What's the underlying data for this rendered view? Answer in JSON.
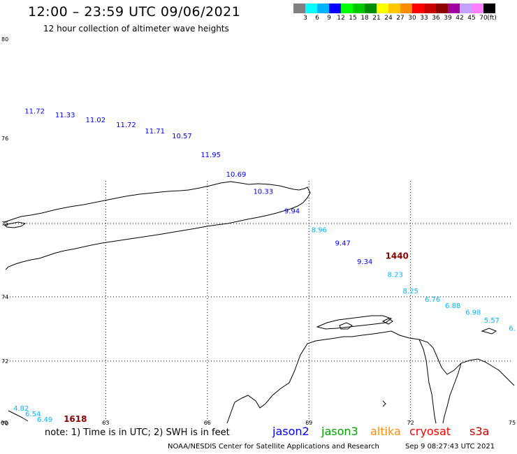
{
  "header": {
    "title": "12:00 – 23:59 UTC 09/06/2021",
    "subtitle": "12 hour collection of altimeter wave heights"
  },
  "color_scale": {
    "labels": [
      "3",
      "6",
      "9",
      "12",
      "15",
      "18",
      "21",
      "24",
      "27",
      "30",
      "33",
      "36",
      "39",
      "42",
      "45",
      "70"
    ],
    "unit": "(ft)",
    "colors": [
      "#808080",
      "#00ffff",
      "#00b4ff",
      "#0000ff",
      "#00ff00",
      "#00c800",
      "#008c00",
      "#ffff00",
      "#ffc800",
      "#ff8c00",
      "#ff0000",
      "#c80000",
      "#8c0000",
      "#a000a0",
      "#c8a0ff",
      "#ff80ff",
      "#000000"
    ]
  },
  "map": {
    "lat_labels": [
      "80",
      "76",
      "75",
      "74",
      "72",
      "70"
    ],
    "lon_labels": [
      "60",
      "63",
      "66",
      "69",
      "72",
      "75"
    ],
    "coast_color": "#000000",
    "grid_color": "#000000"
  },
  "observations": [
    {
      "value": "11.72",
      "lon": 60.9,
      "lat": 77.0,
      "color": "#0000ff"
    },
    {
      "value": "11.33",
      "lon": 61.8,
      "lat": 76.85,
      "color": "#0000ff"
    },
    {
      "value": "11.02",
      "lon": 62.7,
      "lat": 76.65,
      "color": "#0000ff"
    },
    {
      "value": "11.72",
      "lon": 63.6,
      "lat": 76.45,
      "color": "#0000ff"
    },
    {
      "value": "11.71",
      "lon": 64.45,
      "lat": 76.2,
      "color": "#0000ff"
    },
    {
      "value": "10.57",
      "lon": 65.25,
      "lat": 76.0,
      "color": "#0000ff"
    },
    {
      "value": "11.95",
      "lon": 66.1,
      "lat": 75.78,
      "color": "#0000ff"
    },
    {
      "value": "10.69",
      "lon": 66.85,
      "lat": 75.55,
      "color": "#0000ff"
    },
    {
      "value": "10.33",
      "lon": 67.65,
      "lat": 75.35,
      "color": "#0000ff"
    },
    {
      "value": "9.94",
      "lon": 68.5,
      "lat": 75.12,
      "color": "#0000ff"
    },
    {
      "value": "8.96",
      "lon": 69.3,
      "lat": 74.88,
      "color": "#00b4ff"
    },
    {
      "value": "9.47",
      "lon": 70.0,
      "lat": 74.7,
      "color": "#0000ff"
    },
    {
      "value": "9.34",
      "lon": 70.65,
      "lat": 74.45,
      "color": "#0000ff"
    },
    {
      "value": "8.23",
      "lon": 71.55,
      "lat": 74.27,
      "color": "#00b4ff"
    },
    {
      "value": "8.25",
      "lon": 72.0,
      "lat": 74.05,
      "color": "#00b4ff"
    },
    {
      "value": "6.76",
      "lon": 72.65,
      "lat": 73.85,
      "color": "#00b4ff"
    },
    {
      "value": "6.88",
      "lon": 73.25,
      "lat": 73.65,
      "color": "#00b4ff"
    },
    {
      "value": "6.98",
      "lon": 73.85,
      "lat": 73.45,
      "color": "#00b4ff"
    },
    {
      "value": "5.57",
      "lon": 74.4,
      "lat": 73.2,
      "color": "#00b4ff"
    },
    {
      "value": "6.",
      "lon": 75.0,
      "lat": 72.95,
      "color": "#00b4ff"
    },
    {
      "value": "4.82",
      "lon": 60.5,
      "lat": 70.4,
      "color": "#00b4ff"
    },
    {
      "value": "6.54",
      "lon": 60.85,
      "lat": 70.22,
      "color": "#00b4ff"
    },
    {
      "value": "6.49",
      "lon": 61.2,
      "lat": 70.05,
      "color": "#00b4ff"
    }
  ],
  "time_marks": [
    {
      "value": "1440",
      "lon": 71.6,
      "lat": 74.52,
      "color": "#8c0000"
    },
    {
      "value": "1618",
      "lon": 62.1,
      "lat": 70.05,
      "color": "#8c0000"
    }
  ],
  "footer": {
    "note": "note: 1) Time is in UTC; 2) SWH is in feet",
    "legend": [
      {
        "name": "jason2",
        "color": "#0000ff"
      },
      {
        "name": "jason3",
        "color": "#00a000"
      },
      {
        "name": "altika",
        "color": "#ff8c00"
      },
      {
        "name": "cryosat",
        "color": "#ff0000"
      },
      {
        "name": "s3a",
        "color": "#c80000"
      }
    ],
    "source": "NOAA/NESDIS Center for Satellite Applications and Research",
    "timestamp": "Sep  9 08:27:43 UTC 2021"
  }
}
